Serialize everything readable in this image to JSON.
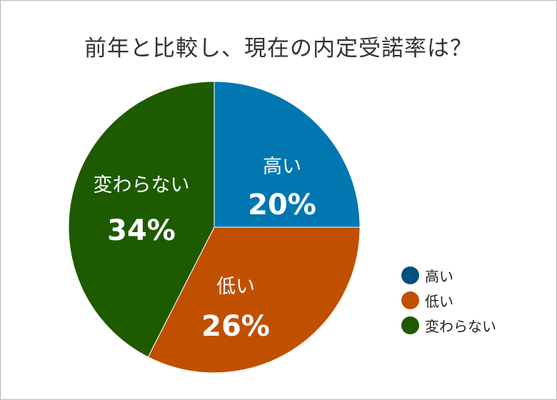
{
  "chart_data": {
    "type": "pie",
    "title": "前年と比較し、現在の内定受諾率は？",
    "slices": [
      {
        "label": "高い",
        "value": 20,
        "value_label": "20%",
        "color": "#0077b0"
      },
      {
        "label": "低い",
        "value": 26,
        "value_label": "26%",
        "color": "#c05000"
      },
      {
        "label": "変わらない",
        "value": 34,
        "value_label": "34%",
        "color": "#1e5a00"
      }
    ],
    "legend": {
      "placement": "bottom-right",
      "items": [
        {
          "label": "高い",
          "color": "#005080"
        },
        {
          "label": "低い",
          "color": "#c05000"
        },
        {
          "label": "変わらない",
          "color": "#1e5a00"
        }
      ]
    }
  }
}
